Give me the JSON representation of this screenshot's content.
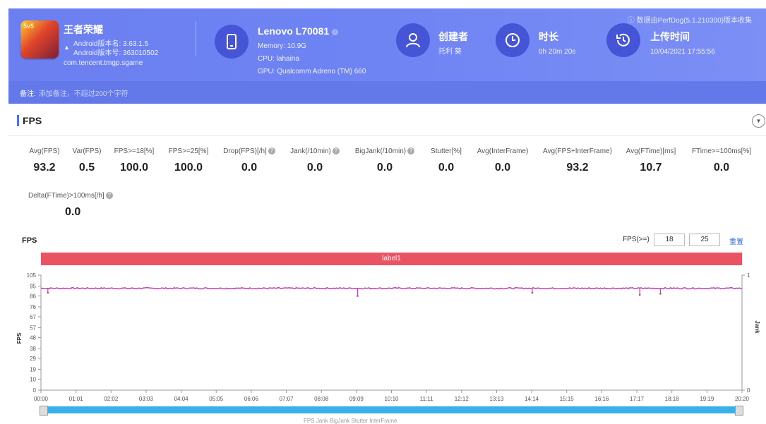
{
  "header": {
    "notice": "数据由PerfDog(5.1.210300)版本收集",
    "app": {
      "name": "王者荣耀",
      "version_name": "Android版本名: 3.63.1.5",
      "version_code": "Android版本号: 363010502",
      "package": "com.tencent.tmgp.sgame",
      "icon_text": "5v5"
    },
    "device": {
      "name": "Lenovo L70081",
      "memory": "Memory: 10.9G",
      "cpu": "CPU: lahaina",
      "gpu": "GPU: Qualcomm Adreno (TM) 660"
    },
    "creator": {
      "title": "创建者",
      "value": "托利 葵"
    },
    "duration": {
      "title": "时长",
      "value": "0h 20m 20s"
    },
    "upload": {
      "title": "上传时间",
      "value": "10/04/2021 17:55:56"
    },
    "remark": {
      "label": "备注:",
      "placeholder": "添加备注，不超过200个字符"
    }
  },
  "section": {
    "title": "FPS",
    "collapse_icon": "chevron-down-icon"
  },
  "metrics": [
    {
      "label": "Avg(FPS)",
      "value": "93.2",
      "help": false
    },
    {
      "label": "Var(FPS)",
      "value": "0.5",
      "help": false
    },
    {
      "label": "FPS>=18[%]",
      "value": "100.0",
      "help": false
    },
    {
      "label": "FPS>=25[%]",
      "value": "100.0",
      "help": false
    },
    {
      "label": "Drop(FPS)[/h]",
      "value": "0.0",
      "help": true
    },
    {
      "label": "Jank(/10min)",
      "value": "0.0",
      "help": true
    },
    {
      "label": "BigJank(/10min)",
      "value": "0.0",
      "help": true
    },
    {
      "label": "Stutter[%]",
      "value": "0.0",
      "help": false
    },
    {
      "label": "Avg(InterFrame)",
      "value": "0.0",
      "help": false
    },
    {
      "label": "Avg(FPS+InterFrame)",
      "value": "93.2",
      "help": false
    },
    {
      "label": "Avg(FTime)[ms]",
      "value": "10.7",
      "help": false
    },
    {
      "label": "FTime>=100ms[%]",
      "value": "0.0",
      "help": false
    },
    {
      "label": "Delta(FTime)>100ms[/h]",
      "value": "0.0",
      "help": true
    }
  ],
  "chart_controls": {
    "title": "FPS",
    "threshold_label": "FPS(>=)",
    "threshold_low": "18",
    "threshold_high": "25",
    "reset": "重置",
    "label_bar": "label1",
    "bottom_legend": "FPS    Jank    BigJank    Stutter    InterFrame"
  },
  "chart_data": {
    "type": "line",
    "ylabel": "FPS",
    "y2label": "Jank",
    "ylim": [
      0,
      105
    ],
    "y_ticks": [
      0,
      10,
      19,
      29,
      38,
      48,
      57,
      67,
      76,
      86,
      95,
      105
    ],
    "y2_ticks": [
      0,
      1
    ],
    "x_ticks": [
      "00:00",
      "01:01",
      "02:02",
      "03:03",
      "04:04",
      "05:05",
      "06:06",
      "07:07",
      "08:08",
      "09:09",
      "10:10",
      "11:11",
      "12:12",
      "13:13",
      "14:14",
      "15:15",
      "16:16",
      "17:17",
      "18:18",
      "19:19",
      "20:20"
    ],
    "duration_s": 1220,
    "series": [
      {
        "name": "FPS",
        "color": "#c23fb2",
        "baseline": 93,
        "dips": [
          {
            "x": "00:12",
            "y": 89
          },
          {
            "x": "09:11",
            "y": 86
          },
          {
            "x": "14:15",
            "y": 89
          },
          {
            "x": "17:22",
            "y": 87
          },
          {
            "x": "17:58",
            "y": 88
          }
        ]
      }
    ],
    "grid": false
  }
}
